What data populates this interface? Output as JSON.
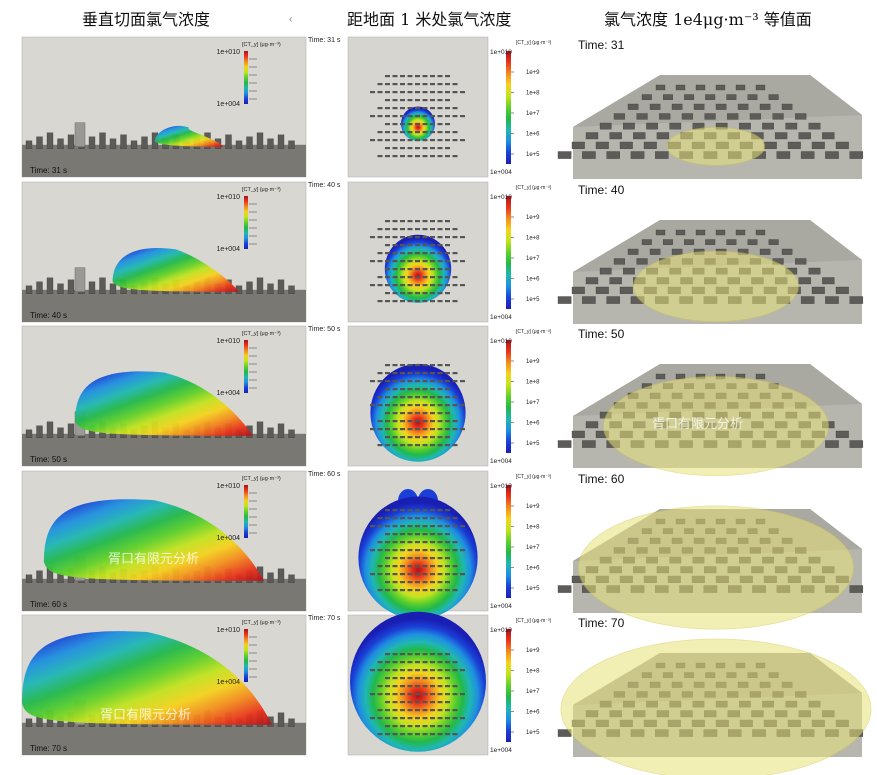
{
  "headers": {
    "col1": "垂直切面氯气浓度",
    "col2": "距地面 1 米处氯气浓度",
    "col3": "氯气浓度 1e4μg·m⁻³ 等值面"
  },
  "column_marker": "‹",
  "colorbar": {
    "unit_label": "[CT_y] (μg·m⁻³)",
    "max_label": "1e+010",
    "min_label": "1e+004",
    "ticks_top": [
      "1e+9",
      "1e+8",
      "1e+7",
      "1e+6",
      "1e+5"
    ],
    "ticks_top_first": [
      "1e+9",
      "1e+8",
      "1e+7",
      "1e+6",
      "1e+5"
    ],
    "colors": [
      "#b0101a",
      "#e8361c",
      "#f38b1e",
      "#f5d21e",
      "#c2e31f",
      "#5fd02a",
      "#22b84a",
      "#1fb7b3",
      "#1f8fe0",
      "#1a3fd6",
      "#1a1fb4"
    ]
  },
  "watermark": "胥口有限元分析",
  "isosurface_color": "#e8e27a",
  "chart_data": {
    "type": "heatmap",
    "description_series": "chlorine concentration frames",
    "frames": [
      {
        "time_col1": "Time: 31 s",
        "time_col3": "Time: 31",
        "plume": 0.15,
        "ground": 0.08
      },
      {
        "time_col1": "Time: 40 s",
        "time_col3": "Time: 40",
        "plume": 0.42,
        "ground": 0.3
      },
      {
        "time_col1": "Time: 50 s",
        "time_col3": "Time: 50",
        "plume": 0.66,
        "ground": 0.52
      },
      {
        "time_col1": "Time: 60 s",
        "time_col3": "Time: 60",
        "plume": 0.86,
        "ground": 0.78
      },
      {
        "time_col1": "Time: 70 s",
        "time_col3": "Time: 70",
        "plume": 1.0,
        "ground": 0.92
      }
    ],
    "colorbar_range": [
      "1e+004",
      "1e+010"
    ],
    "colorbar_ticks": [
      "1e+9",
      "1e+8",
      "1e+7",
      "1e+6",
      "1e+5"
    ]
  }
}
